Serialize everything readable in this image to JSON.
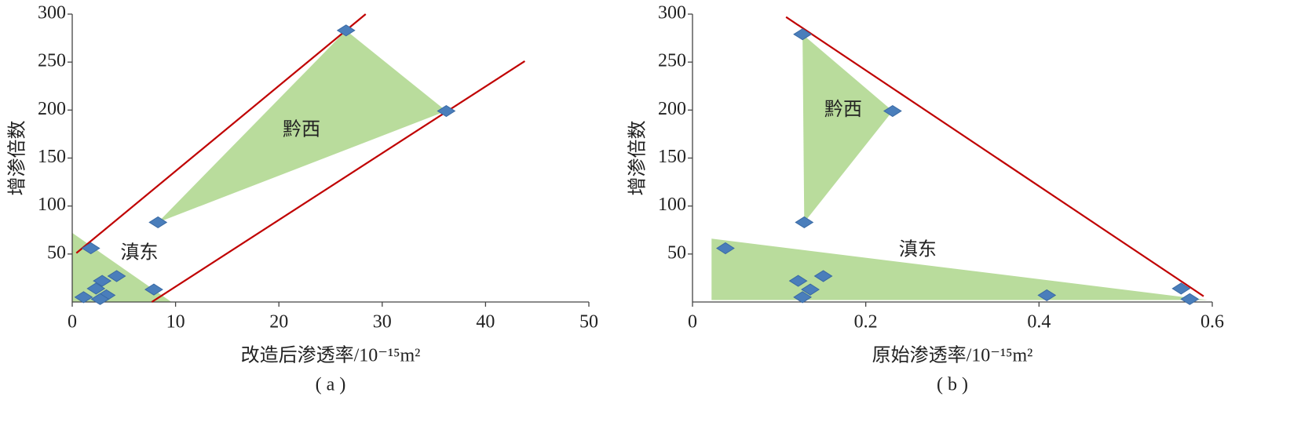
{
  "chart_data": [
    {
      "type": "scatter",
      "caption": "( a )",
      "x_label": "改造后渗透率/10⁻¹⁵m²",
      "y_label": "增渗倍数",
      "xlim": [
        0,
        50
      ],
      "xticks": [
        0,
        10,
        20,
        30,
        40,
        50
      ],
      "ylim": [
        0,
        300
      ],
      "yticks": [
        50,
        100,
        150,
        200,
        250,
        300
      ],
      "marker_color": "#4a7ebb",
      "x": [
        26.5,
        36.2,
        8.3,
        1.8,
        7.9,
        4.3,
        2.9,
        2.3,
        3.3,
        2.7,
        1.1
      ],
      "values": [
        283,
        199,
        83,
        56,
        13,
        27,
        22,
        14,
        7,
        3,
        5
      ],
      "region_color": "#b9dc9c",
      "regions": [
        {
          "x": [
            8.3,
            26.5,
            36.2
          ],
          "y": [
            83,
            283,
            199
          ]
        },
        {
          "x": [
            0,
            0,
            9.6
          ],
          "y": [
            72,
            0,
            0
          ]
        }
      ],
      "line_color": "#c00000",
      "lines": [
        {
          "x": [
            0.4,
            28.4
          ],
          "y": [
            51,
            300
          ]
        },
        {
          "x": [
            7.7,
            43.8
          ],
          "y": [
            0,
            251
          ]
        }
      ],
      "annotations": [
        {
          "text": "黔西",
          "x": 22.2,
          "y": 178
        },
        {
          "text": "滇东",
          "x": 6.5,
          "y": 50
        }
      ]
    },
    {
      "type": "scatter",
      "caption": "( b )",
      "x_label": "原始渗透率/10⁻¹⁵m²",
      "y_label": "增渗倍数",
      "xlim": [
        0,
        0.6
      ],
      "xticks": [
        0,
        0.2,
        0.4,
        0.6
      ],
      "ylim": [
        0,
        300
      ],
      "yticks": [
        50,
        100,
        150,
        200,
        250,
        300
      ],
      "marker_color": "#4a7ebb",
      "x": [
        0.127,
        0.231,
        0.129,
        0.038,
        0.122,
        0.136,
        0.151,
        0.127,
        0.409,
        0.564,
        0.574
      ],
      "values": [
        279,
        199,
        83,
        56,
        22,
        13,
        27,
        5,
        7,
        14,
        3
      ],
      "region_color": "#b9dc9c",
      "regions": [
        {
          "x": [
            0.127,
            0.231,
            0.129
          ],
          "y": [
            279,
            199,
            83
          ]
        },
        {
          "x": [
            0.022,
            0.022,
            0.595
          ],
          "y": [
            66,
            2,
            2
          ]
        }
      ],
      "line_color": "#c00000",
      "lines": [
        {
          "x": [
            0.108,
            0.59
          ],
          "y": [
            297,
            6
          ]
        }
      ],
      "annotations": [
        {
          "text": "黔西",
          "x": 0.174,
          "y": 199
        },
        {
          "text": "滇东",
          "x": 0.26,
          "y": 53
        }
      ]
    }
  ]
}
